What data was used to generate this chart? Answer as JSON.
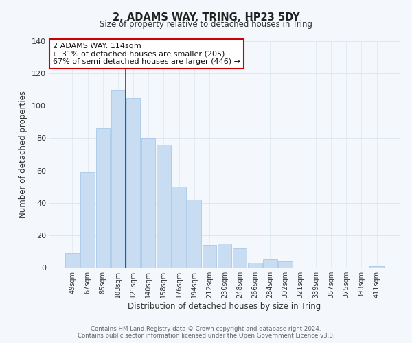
{
  "title": "2, ADAMS WAY, TRING, HP23 5DY",
  "subtitle": "Size of property relative to detached houses in Tring",
  "xlabel": "Distribution of detached houses by size in Tring",
  "ylabel": "Number of detached properties",
  "bar_color": "#c8ddf2",
  "bar_edge_color": "#a8c8e8",
  "categories": [
    "49sqm",
    "67sqm",
    "85sqm",
    "103sqm",
    "121sqm",
    "140sqm",
    "158sqm",
    "176sqm",
    "194sqm",
    "212sqm",
    "230sqm",
    "248sqm",
    "266sqm",
    "284sqm",
    "302sqm",
    "321sqm",
    "339sqm",
    "357sqm",
    "375sqm",
    "393sqm",
    "411sqm"
  ],
  "values": [
    9,
    59,
    86,
    110,
    105,
    80,
    76,
    50,
    42,
    14,
    15,
    12,
    3,
    5,
    4,
    0,
    0,
    0,
    0,
    0,
    1
  ],
  "ylim": [
    0,
    140
  ],
  "yticks": [
    0,
    20,
    40,
    60,
    80,
    100,
    120,
    140
  ],
  "annotation_text": "2 ADAMS WAY: 114sqm\n← 31% of detached houses are smaller (205)\n67% of semi-detached houses are larger (446) →",
  "footer_line1": "Contains HM Land Registry data © Crown copyright and database right 2024.",
  "footer_line2": "Contains public sector information licensed under the Open Government Licence v3.0.",
  "grid_color": "#dce8f0",
  "background_color": "#f4f8fc",
  "marker_bar_index": 3,
  "marker_color": "#cc0000"
}
